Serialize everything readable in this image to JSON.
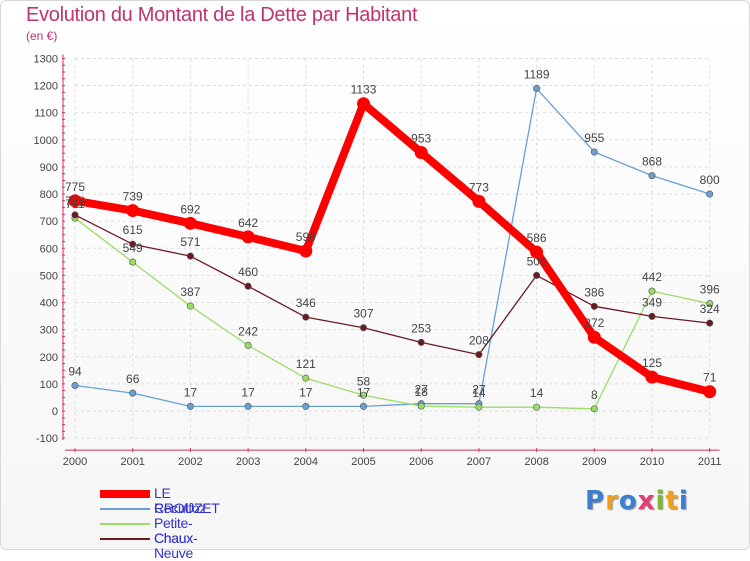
{
  "chart_data": {
    "type": "line",
    "title": "Evolution du Montant de la Dette par Habitant",
    "subtitle": "(en €)",
    "x": [
      "2000",
      "2001",
      "2002",
      "2003",
      "2004",
      "2005",
      "2006",
      "2007",
      "2008",
      "2009",
      "2010",
      "2011"
    ],
    "ylim": [
      -100,
      1300
    ],
    "yticks": [
      -100,
      0,
      100,
      200,
      300,
      400,
      500,
      600,
      700,
      800,
      900,
      1000,
      1100,
      1200,
      1300
    ],
    "grid": true,
    "legend_position": "bottom-left",
    "series": [
      {
        "name": "LE CROUZET",
        "color": "#ff0000",
        "values": [
          775,
          739,
          692,
          642,
          590,
          1133,
          953,
          773,
          586,
          272,
          125,
          71
        ],
        "labels": [
          "775",
          "739",
          "692",
          "642",
          "590",
          "1133",
          "953",
          "773",
          "586",
          "272",
          "125",
          "71"
        ]
      },
      {
        "name": "Reculfoz",
        "color": "#6a9fd4",
        "values": [
          94,
          66,
          17,
          17,
          17,
          17,
          27,
          27,
          1189,
          955,
          868,
          800
        ],
        "labels": [
          "94",
          "66",
          "17",
          "17",
          "17",
          "17",
          "27",
          "27",
          "1189",
          "955",
          "868",
          "800"
        ]
      },
      {
        "name": "Petite-Chaux",
        "color": "#99dd66",
        "values": [
          711,
          549,
          387,
          242,
          121,
          58,
          18,
          14,
          14,
          8,
          442,
          396
        ],
        "labels": [
          "711",
          "549",
          "387",
          "242",
          "121",
          "58",
          "18",
          "14",
          "14",
          "8",
          "442",
          "396"
        ]
      },
      {
        "name": "Chaux-Neuve",
        "color": "#6b1a22",
        "values": [
          723,
          615,
          571,
          460,
          346,
          307,
          253,
          208,
          500,
          386,
          349,
          324
        ],
        "labels": [
          "723",
          "615",
          "571",
          "460",
          "346",
          "307",
          "253",
          "208",
          "500",
          "386",
          "349",
          "324"
        ]
      }
    ]
  },
  "logo": {
    "letters": [
      "P",
      "r",
      "o",
      "x",
      "i",
      "t",
      "i"
    ]
  },
  "colors": {
    "title": "#c0336e",
    "axis": "#444444",
    "grid": "#dddddd",
    "data_label": "#444444"
  }
}
